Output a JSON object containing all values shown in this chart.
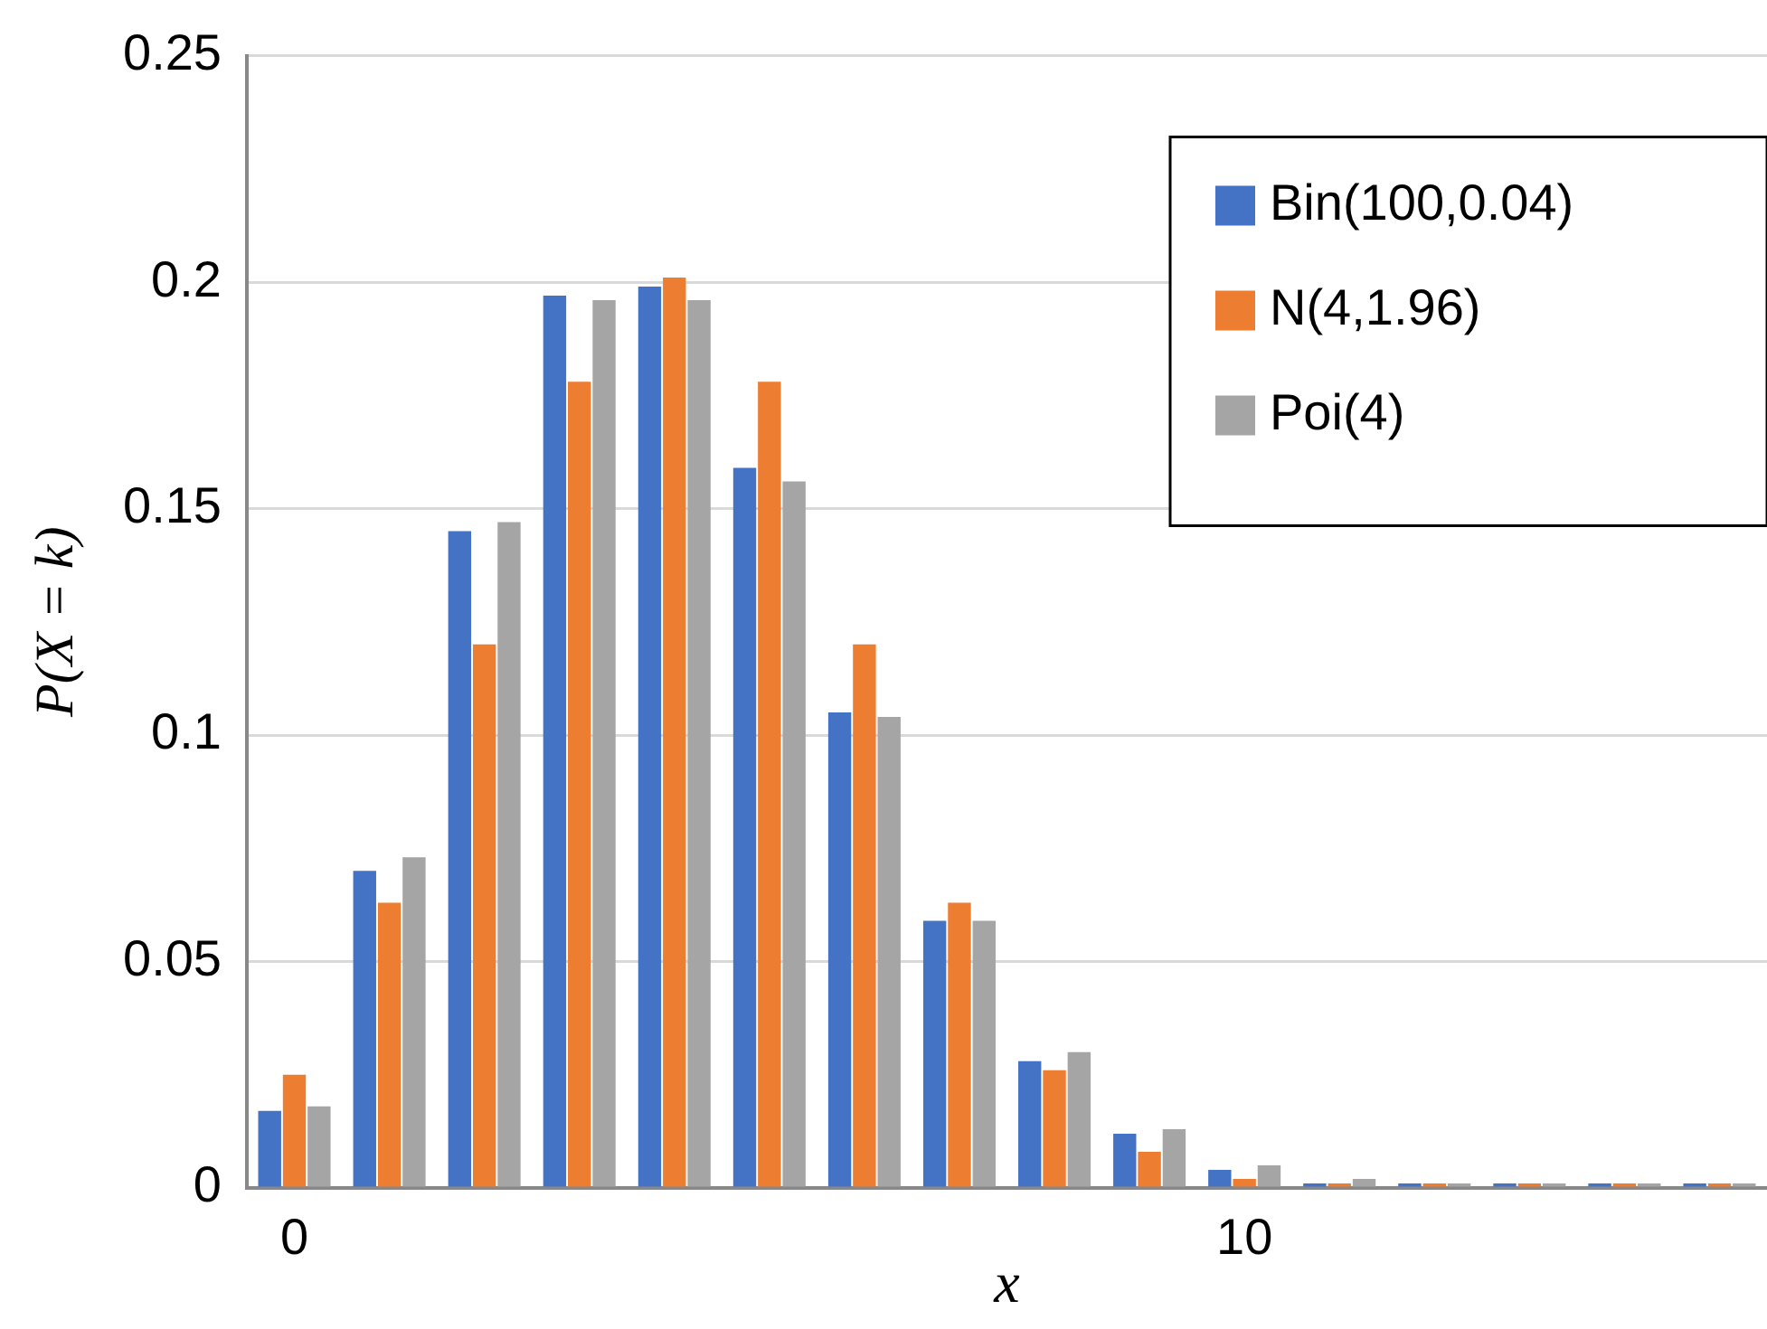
{
  "chart_data": {
    "type": "bar",
    "xlabel": "x",
    "ylabel": "P(X = k)",
    "categories": [
      "0",
      null,
      null,
      null,
      null,
      null,
      null,
      null,
      null,
      null,
      "10",
      null,
      null,
      null,
      null,
      null
    ],
    "series": [
      {
        "name": "Bin(100,0.04)",
        "color": "#4472c4",
        "values": [
          0.017,
          0.07,
          0.145,
          0.197,
          0.199,
          0.159,
          0.105,
          0.059,
          0.028,
          0.012,
          0.004,
          0.001,
          0.001,
          0.001,
          0.001,
          0.001
        ]
      },
      {
        "name": "N(4,1.96)",
        "color": "#ed7d31",
        "values": [
          0.025,
          0.063,
          0.12,
          0.178,
          0.201,
          0.178,
          0.12,
          0.063,
          0.026,
          0.008,
          0.002,
          0.001,
          0.001,
          0.001,
          0.001,
          0.001
        ]
      },
      {
        "name": "Poi(4)",
        "color": "#a5a5a5",
        "values": [
          0.018,
          0.073,
          0.147,
          0.196,
          0.196,
          0.156,
          0.104,
          0.059,
          0.03,
          0.013,
          0.005,
          0.002,
          0.001,
          0.001,
          0.001,
          0.001
        ]
      }
    ],
    "ylim": [
      0,
      0.25
    ],
    "yticks": [
      0,
      0.05,
      0.1,
      0.15,
      0.2,
      0.25
    ],
    "grid": "y",
    "legend": "top right"
  }
}
